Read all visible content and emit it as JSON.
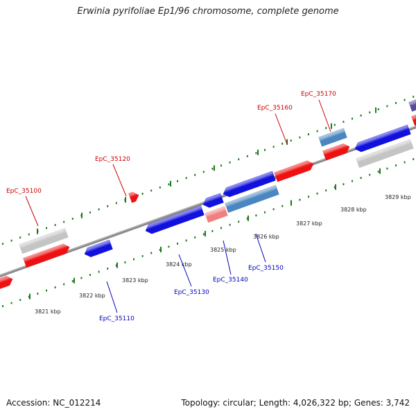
{
  "title": "Erwinia pyrifoliae Ep1/96 chromosome, complete genome",
  "footer": {
    "accession": "Accession: NC_012214",
    "summary": "Topology: circular; Length: 4,026,322 bp; Genes: 3,742"
  },
  "colors": {
    "backbone": "#888888",
    "tick": "#1a7a1a",
    "red": "#ee1111",
    "blue": "#1111dd",
    "steel": "#4a86c0",
    "grey": "#c4c4c4",
    "pink": "#f08080",
    "purple": "#5a4a9a",
    "label_red": "#cc0000",
    "label_blue": "#0000bb"
  },
  "kbp_labels": [
    "3821 kbp",
    "3822 kbp",
    "3823 kbp",
    "3824 kbp",
    "3825 kbp",
    "3826 kbp",
    "3827 kbp",
    "3828 kbp",
    "3829 kbp"
  ],
  "gene_labels": [
    {
      "text": "EpC_35100",
      "color": "red"
    },
    {
      "text": "EpC_35110",
      "color": "blue"
    },
    {
      "text": "EpC_35120",
      "color": "red"
    },
    {
      "text": "EpC_35130",
      "color": "blue"
    },
    {
      "text": "EpC_35140",
      "color": "blue"
    },
    {
      "text": "EpC_35150",
      "color": "blue"
    },
    {
      "text": "EpC_35160",
      "color": "red"
    },
    {
      "text": "EpC_35170",
      "color": "red"
    }
  ]
}
